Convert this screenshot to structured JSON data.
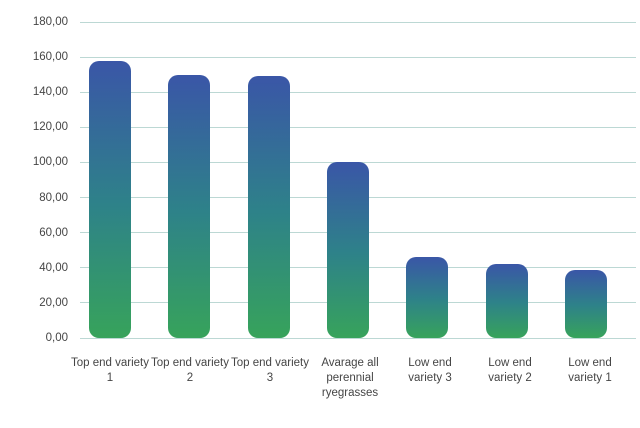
{
  "chart_data": {
    "type": "bar",
    "title": "",
    "xlabel": "",
    "ylabel": "",
    "categories": [
      "Top end variety 1",
      "Top end variety 2",
      "Top end variety 3",
      "Avarage all perennial ryegrasses",
      "Low end variety 3",
      "Low end variety 2",
      "Low end variety 1"
    ],
    "values": [
      158,
      150,
      149,
      100,
      46,
      42,
      39
    ],
    "ylim": [
      0,
      180
    ],
    "ytick_interval": 20,
    "ytick_labels": [
      "0,00",
      "20,00",
      "40,00",
      "60,00",
      "80,00",
      "100,00",
      "120,00",
      "140,00",
      "160,00",
      "180,00"
    ],
    "grid": "horizontal",
    "legend_position": "none",
    "colors": {
      "bar_gradient_top": "#3A56A7",
      "bar_gradient_mid": "#2E8289",
      "bar_gradient_bottom": "#37A35B",
      "gridline": "#BCD8D4",
      "label": "#454545",
      "background": "#FFFFFF"
    }
  }
}
